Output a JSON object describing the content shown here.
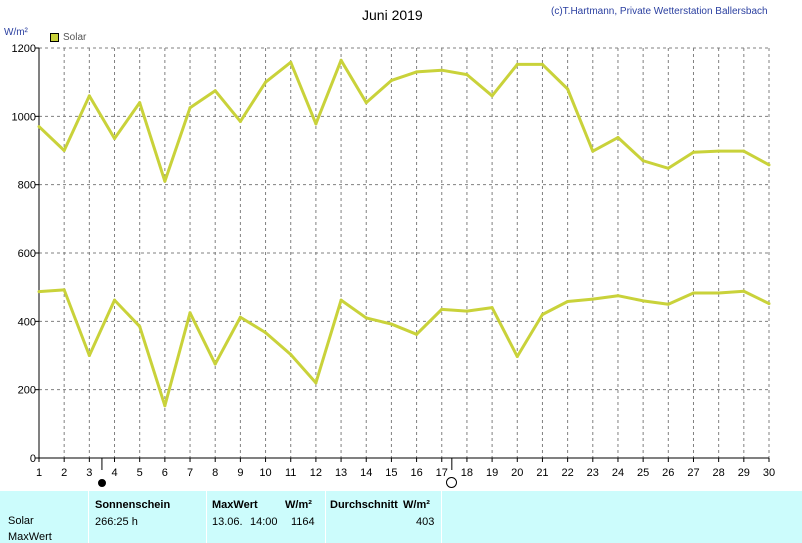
{
  "header": {
    "title": "Juni 2019",
    "copyright": "(c)T.Hartmann, Private Wetterstation Ballersbach",
    "unit": "W/m²",
    "legend": "Solar"
  },
  "colors": {
    "series": "#c9d23a",
    "grid": "#808080",
    "table_bg": "#ccfcfc"
  },
  "chart_data": {
    "type": "line",
    "title": "Juni 2019",
    "ylabel": "W/m²",
    "xlabel": "",
    "ylim": [
      0,
      1200
    ],
    "yticks": [
      0,
      200,
      400,
      600,
      800,
      1000,
      1200
    ],
    "xlim": [
      1,
      30
    ],
    "xticks": [
      1,
      2,
      3,
      4,
      5,
      6,
      7,
      8,
      9,
      10,
      11,
      12,
      13,
      14,
      15,
      16,
      17,
      18,
      19,
      20,
      21,
      22,
      23,
      24,
      25,
      26,
      27,
      28,
      29,
      30
    ],
    "grid": true,
    "legend_position": "top-left",
    "series": [
      {
        "name": "Solar",
        "role": "max",
        "x": [
          1,
          2,
          3,
          4,
          5,
          6,
          7,
          8,
          9,
          10,
          11,
          12,
          13,
          14,
          15,
          16,
          17,
          18,
          19,
          20,
          21,
          22,
          23,
          24,
          25,
          26,
          27,
          28,
          29,
          30
        ],
        "values": [
          970,
          900,
          1060,
          935,
          1040,
          810,
          1025,
          1075,
          985,
          1100,
          1158,
          978,
          1164,
          1040,
          1105,
          1130,
          1135,
          1122,
          1060,
          1152,
          1152,
          1080,
          898,
          938,
          870,
          848,
          895,
          898,
          898,
          858
        ]
      },
      {
        "name": "",
        "role": "average",
        "x": [
          1,
          2,
          3,
          4,
          5,
          6,
          7,
          8,
          9,
          10,
          11,
          12,
          13,
          14,
          15,
          16,
          17,
          18,
          19,
          20,
          21,
          22,
          23,
          24,
          25,
          26,
          27,
          28,
          29,
          30
        ],
        "values": [
          487,
          492,
          300,
          462,
          385,
          153,
          425,
          275,
          412,
          367,
          303,
          220,
          462,
          410,
          392,
          362,
          435,
          430,
          440,
          297,
          420,
          458,
          465,
          475,
          460,
          450,
          483,
          483,
          488,
          452
        ]
      }
    ],
    "moon_phases": [
      {
        "phase": "new",
        "day": 3.5
      },
      {
        "phase": "full",
        "day": 17.4
      }
    ]
  },
  "table": {
    "row_labels": [
      "Solar",
      "MaxWert"
    ],
    "headers": {
      "sunshine": "Sonnenschein",
      "maxwert": "MaxWert",
      "unit1": "W/m²",
      "durchschnitt": "Durchschnitt",
      "unit2": "W/m²"
    },
    "values": {
      "sunshine": "266:25 h",
      "max_date": "13.06.",
      "max_time": "14:00",
      "max_value": "1164",
      "average": "403"
    }
  }
}
